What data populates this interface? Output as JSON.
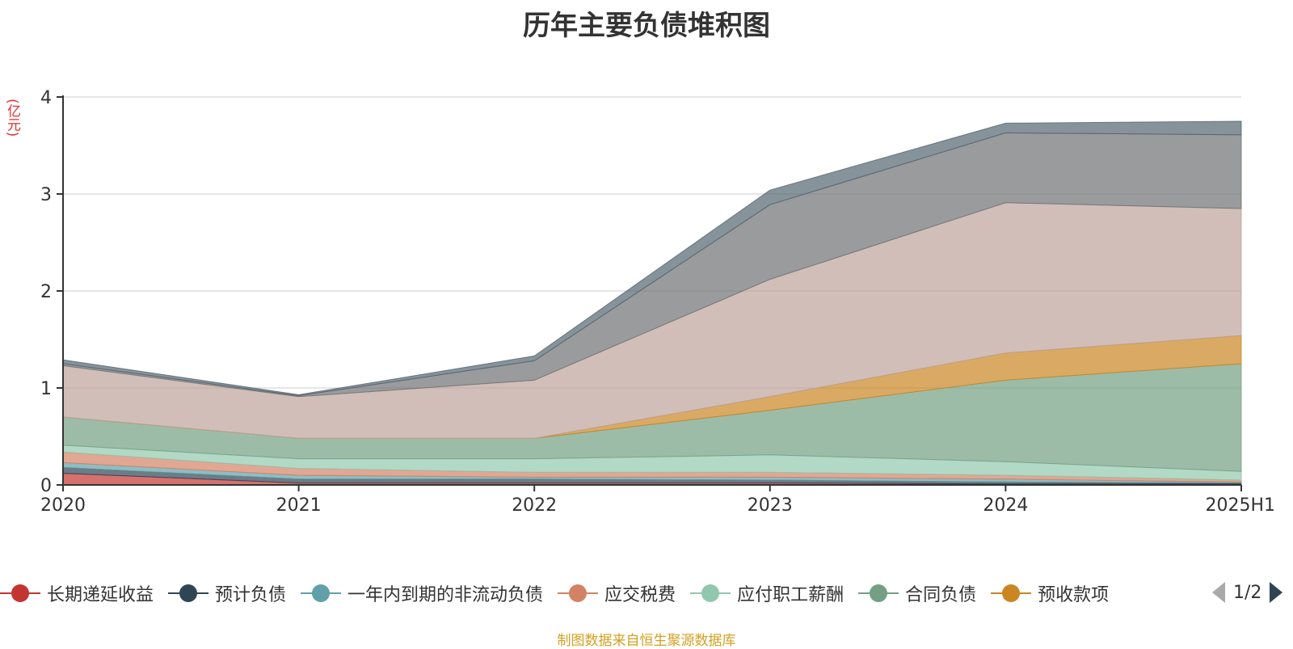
{
  "title": "历年主要负债堆积图",
  "unit": "(亿元)",
  "source": "制图数据来自恒生聚源数据库",
  "pager": {
    "text": "1/2"
  },
  "chart_data": {
    "type": "area",
    "stacked": true,
    "categories": [
      "2020",
      "2021",
      "2022",
      "2023",
      "2024",
      "2025H1"
    ],
    "ylim": [
      0,
      4
    ],
    "yticks": [
      0,
      1,
      2,
      3,
      4
    ],
    "grid": true,
    "legend_position": "bottom",
    "series": [
      {
        "name": "长期递延收益",
        "color": "#c23531",
        "values": [
          0.12,
          0.02,
          0.02,
          0.02,
          0.01,
          0.01
        ],
        "legend": true
      },
      {
        "name": "预计负债",
        "color": "#2f4554",
        "values": [
          0.06,
          0.04,
          0.04,
          0.03,
          0.02,
          0.01
        ],
        "legend": true
      },
      {
        "name": "一年内到期的非流动负债",
        "color": "#61a0a8",
        "values": [
          0.05,
          0.04,
          0.02,
          0.03,
          0.03,
          0.01
        ],
        "legend": true
      },
      {
        "name": "应交税费",
        "color": "#d48265",
        "values": [
          0.11,
          0.07,
          0.05,
          0.05,
          0.04,
          0.02
        ],
        "legend": true
      },
      {
        "name": "应付职工薪酬",
        "color": "#91c7ae",
        "values": [
          0.07,
          0.1,
          0.14,
          0.18,
          0.14,
          0.09
        ],
        "legend": true
      },
      {
        "name": "合同负债",
        "color": "#749f83",
        "values": [
          0.29,
          0.21,
          0.21,
          0.46,
          0.84,
          1.11
        ],
        "legend": true
      },
      {
        "name": "预收款项",
        "color": "#ca8622",
        "values": [
          0,
          0,
          0,
          0.14,
          0.28,
          0.29
        ],
        "legend": true
      },
      {
        "name": "",
        "color": "#bda29a",
        "values": [
          0.53,
          0.43,
          0.6,
          1.21,
          1.55,
          1.31
        ],
        "legend": false
      },
      {
        "name": "",
        "color": "#6e7074",
        "values": [
          0.02,
          0.01,
          0.2,
          0.77,
          0.72,
          0.76
        ],
        "legend": false
      },
      {
        "name": "",
        "color": "#546570",
        "values": [
          0.04,
          0.01,
          0.05,
          0.15,
          0.1,
          0.14
        ],
        "legend": false
      }
    ]
  }
}
